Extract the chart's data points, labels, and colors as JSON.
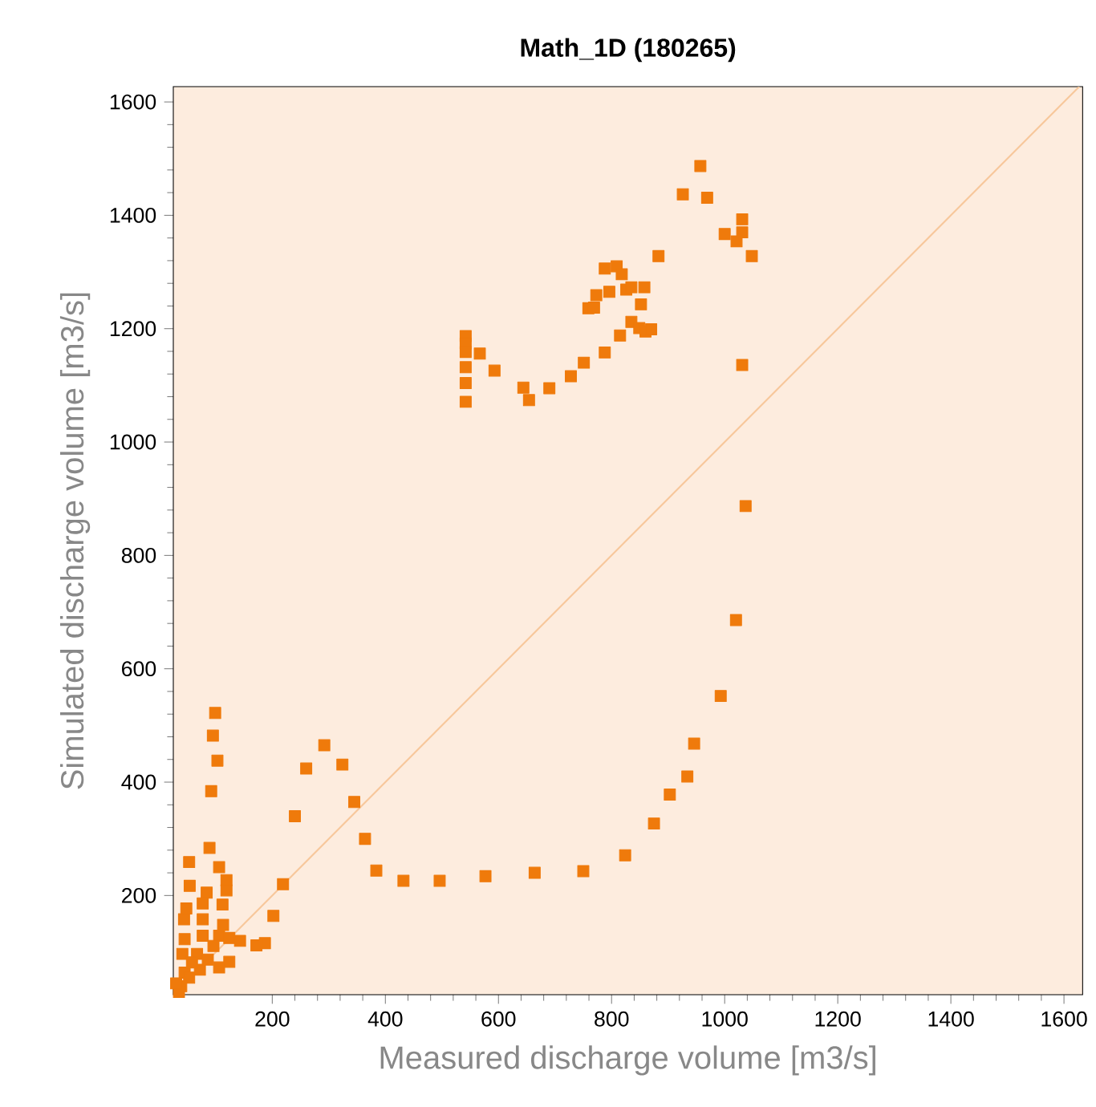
{
  "chart_data": {
    "type": "scatter",
    "title": "Math_1D (180265)",
    "xlabel": "Measured discharge volume [m3/s]",
    "ylabel": "Simulated discharge volume [m3/s]",
    "xlim": [
      25,
      1633
    ],
    "ylim": [
      25,
      1627
    ],
    "xticks": [
      200,
      400,
      600,
      800,
      1000,
      1200,
      1400,
      1600
    ],
    "yticks": [
      200,
      400,
      600,
      800,
      1000,
      1200,
      1400,
      1600
    ],
    "grid": false,
    "series": [
      {
        "marker": "square",
        "color": "#ef7a0b",
        "x": [
          542,
          542,
          542,
          567,
          542,
          542,
          542,
          593,
          644,
          654,
          690,
          728,
          751,
          788,
          815,
          759,
          769,
          773,
          796,
          788,
          809,
          818,
          826,
          835,
          858,
          852,
          835,
          849,
          860,
          870,
          883,
          926,
          957,
          969,
          1000,
          1021,
          1031,
          1031,
          1048,
          1031,
          1037,
          1020,
          993,
          946,
          934,
          903,
          875,
          292,
          324,
          345,
          364,
          384,
          432,
          496,
          577,
          664,
          750,
          824,
          99,
          95,
          103,
          92,
          260,
          240,
          219,
          202,
          187,
          172,
          89,
          53,
          54,
          106,
          119,
          119,
          84,
          112,
          48,
          44,
          77,
          77,
          113,
          45,
          77,
          106,
          124,
          143,
          96,
          41,
          67,
          124,
          106,
          72,
          45,
          53,
          39,
          35,
          86,
          58,
          30
        ],
        "values": [
          1187,
          1174,
          1159,
          1156,
          1132,
          1104,
          1071,
          1126,
          1096,
          1074,
          1095,
          1116,
          1140,
          1158,
          1188,
          1236,
          1237,
          1259,
          1265,
          1306,
          1310,
          1296,
          1269,
          1273,
          1273,
          1243,
          1212,
          1201,
          1195,
          1199,
          1328,
          1437,
          1487,
          1431,
          1367,
          1354,
          1370,
          1393,
          1328,
          1136,
          887,
          686,
          552,
          468,
          410,
          378,
          327,
          465,
          431,
          365,
          300,
          244,
          226,
          226,
          234,
          240,
          243,
          271,
          522,
          482,
          438,
          384,
          424,
          340,
          220,
          164,
          116,
          112,
          284,
          259,
          217,
          250,
          227,
          209,
          205,
          184,
          177,
          158,
          186,
          158,
          148,
          123,
          129,
          129,
          125,
          120,
          111,
          97,
          97,
          83,
          73,
          69,
          64,
          55,
          40,
          30,
          87,
          82,
          45
        ]
      },
      {
        "type": "line",
        "color": "#f7c79b",
        "x": [
          25,
          1627
        ],
        "values": [
          25,
          1627
        ]
      }
    ]
  }
}
